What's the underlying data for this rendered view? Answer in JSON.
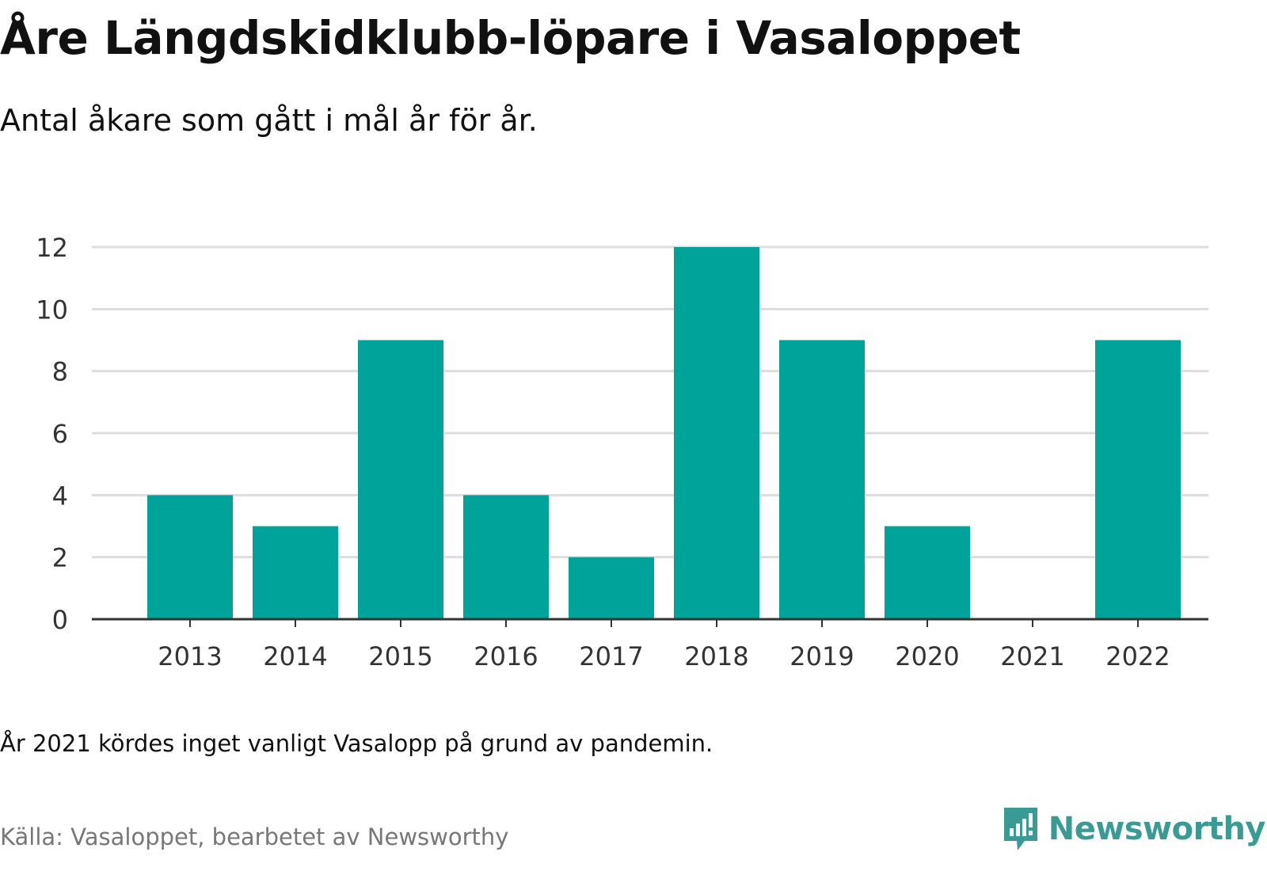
{
  "title": "Åre Längdskidklubb-löpare i Vasaloppet",
  "subtitle": "Antal åkare som gått i mål år för år.",
  "note": "År 2021 kördes inget vanligt Vasalopp på grund av pandemin.",
  "source": "Källa: Vasaloppet, bearbetet av Newsworthy",
  "brand": {
    "name": "Newsworthy",
    "color": "#3a9b94",
    "icon": "newsworthy-logo-icon"
  },
  "colors": {
    "bar": "#00a39a",
    "grid": "#dddddd",
    "axis": "#333333",
    "tick_text": "#333333"
  },
  "chart_data": {
    "type": "bar",
    "title": "",
    "xlabel": "",
    "ylabel": "",
    "categories": [
      "2013",
      "2014",
      "2015",
      "2016",
      "2017",
      "2018",
      "2019",
      "2020",
      "2021",
      "2022"
    ],
    "values": [
      4,
      3,
      9,
      4,
      2,
      12,
      9,
      3,
      0,
      9
    ],
    "ylim": [
      0,
      12
    ],
    "yticks": [
      0,
      2,
      4,
      6,
      8,
      10,
      12
    ],
    "grid": true,
    "legend": "none"
  }
}
